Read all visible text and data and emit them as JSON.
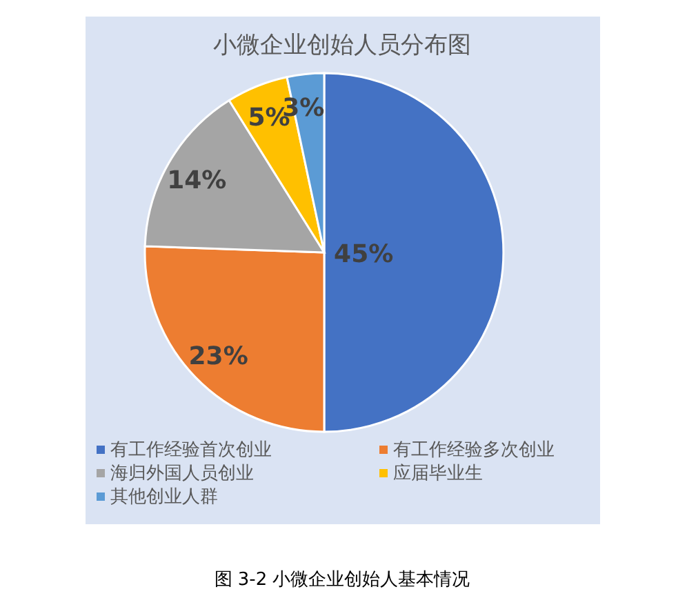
{
  "chart_data": {
    "type": "pie",
    "title": "小微企业创始人员分布图",
    "categories": [
      "有工作经验首次创业",
      "有工作经验多次创业",
      "海归外国人员创业",
      "应届毕业生",
      "其他创业人群"
    ],
    "values": [
      45,
      23,
      14,
      5,
      3
    ],
    "colors": [
      "#4472c4",
      "#ed7d31",
      "#a5a5a5",
      "#ffc000",
      "#5b9bd5"
    ],
    "value_labels": [
      "45%",
      "23%",
      "14%",
      "5%",
      "3%"
    ],
    "legend": "bottom",
    "annotations": [
      "图 3-2 小微企业创始人基本情况"
    ]
  }
}
